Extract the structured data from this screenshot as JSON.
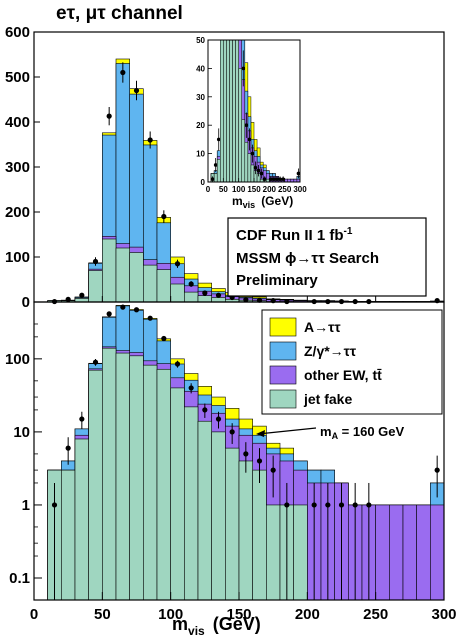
{
  "title": "eτ, μτ channel",
  "colors": {
    "a_tautau": "#ffff00",
    "z_tautau": "#5fb5f0",
    "other_ew": "#9a6cf0",
    "jet_fake": "#9fd6c0",
    "outline": "#000000"
  },
  "chart_data": [
    {
      "type": "area",
      "panel": "top-linear",
      "title": "",
      "xlabel": "",
      "ylabel": "",
      "xlim": [
        0,
        300
      ],
      "ylim": [
        0,
        600
      ],
      "bin_width": 10,
      "bin_edges": [
        10,
        20,
        30,
        40,
        50,
        60,
        70,
        80,
        90,
        100,
        110,
        120,
        130,
        140,
        150,
        160,
        170,
        180,
        190,
        200,
        210,
        220,
        230,
        240,
        250,
        260,
        270,
        280,
        290,
        300
      ],
      "series": [
        {
          "name": "jet fake",
          "values": [
            3,
            3,
            8,
            70,
            140,
            120,
            110,
            82,
            72,
            40,
            22,
            14,
            10,
            6,
            4,
            3,
            1,
            1,
            1,
            0,
            0,
            0,
            0,
            0,
            0,
            0,
            0,
            0,
            0
          ]
        },
        {
          "name": "other EW, tt̄",
          "values": [
            0,
            0,
            1,
            3,
            6,
            10,
            12,
            12,
            14,
            15,
            14,
            10,
            8,
            6,
            5,
            4,
            4,
            3,
            2,
            2,
            2,
            2,
            1,
            1,
            1,
            1,
            1,
            1,
            1
          ]
        },
        {
          "name": "Z/γ*→ττ",
          "values": [
            0,
            1,
            2,
            13,
            225,
            400,
            340,
            255,
            90,
            30,
            15,
            8,
            5,
            3,
            2,
            2,
            1,
            1,
            1,
            1,
            1,
            0,
            0,
            0,
            0,
            0,
            0,
            0,
            1
          ]
        },
        {
          "name": "A→ττ",
          "values": [
            0,
            0,
            0,
            1,
            5,
            10,
            12,
            10,
            12,
            15,
            12,
            10,
            7,
            6,
            4,
            3,
            1,
            1,
            0,
            0,
            0,
            0,
            0,
            0,
            0,
            0,
            0,
            0,
            0
          ]
        }
      ],
      "data_points": [
        {
          "x": 15,
          "y": 1
        },
        {
          "x": 25,
          "y": 6
        },
        {
          "x": 35,
          "y": 15
        },
        {
          "x": 45,
          "y": 90
        },
        {
          "x": 55,
          "y": 413
        },
        {
          "x": 65,
          "y": 510
        },
        {
          "x": 75,
          "y": 470
        },
        {
          "x": 85,
          "y": 360
        },
        {
          "x": 95,
          "y": 190
        },
        {
          "x": 105,
          "y": 85
        },
        {
          "x": 115,
          "y": 40
        },
        {
          "x": 125,
          "y": 20
        },
        {
          "x": 135,
          "y": 15
        },
        {
          "x": 145,
          "y": 10
        },
        {
          "x": 155,
          "y": 5
        },
        {
          "x": 165,
          "y": 4
        },
        {
          "x": 175,
          "y": 3
        },
        {
          "x": 185,
          "y": 1
        },
        {
          "x": 195,
          "y": 0
        },
        {
          "x": 205,
          "y": 1
        },
        {
          "x": 215,
          "y": 1
        },
        {
          "x": 225,
          "y": 1
        },
        {
          "x": 235,
          "y": 1
        },
        {
          "x": 245,
          "y": 1
        },
        {
          "x": 255,
          "y": 0
        },
        {
          "x": 265,
          "y": 0
        },
        {
          "x": 275,
          "y": 0
        },
        {
          "x": 285,
          "y": 0
        },
        {
          "x": 295,
          "y": 3
        }
      ],
      "xticks": [
        0,
        50,
        100,
        150,
        200,
        250,
        300
      ],
      "yticks": [
        0,
        100,
        200,
        300,
        400,
        500,
        600
      ]
    },
    {
      "type": "area",
      "panel": "inset-zoom",
      "xlabel": "m_vis  (GeV)",
      "xlim": [
        0,
        300
      ],
      "ylim": [
        0,
        50
      ],
      "xticks": [
        0,
        50,
        100,
        150,
        200,
        250,
        300
      ],
      "yticks": [
        0,
        10,
        20,
        30,
        40,
        50
      ]
    },
    {
      "type": "area",
      "panel": "bottom-log",
      "xlabel": "m_vis  (GeV)",
      "xlim": [
        0,
        300
      ],
      "ylim": [
        0.05,
        600
      ],
      "log_y": true,
      "xticks": [
        0,
        50,
        100,
        150,
        200,
        250,
        300
      ],
      "yticks": [
        0.1,
        1,
        10,
        100
      ],
      "ytick_labels": [
        "0.1",
        "1",
        "10",
        "100"
      ]
    }
  ],
  "top_labels": {
    "yticks": [
      "0",
      "100",
      "200",
      "300",
      "400",
      "500",
      "600"
    ],
    "xticks": [
      "0",
      "50",
      "100",
      "150",
      "200",
      "250",
      "300"
    ]
  },
  "inset_labels": {
    "xlabel_main": "m",
    "xlabel_sub": "vis",
    "xlabel_unit": "(GeV)",
    "yticks": [
      "0",
      "10",
      "20",
      "30",
      "40",
      "50"
    ],
    "xticks": [
      "0",
      "50",
      "100",
      "150",
      "200",
      "250",
      "300"
    ]
  },
  "infobox": {
    "line1": "CDF Run II  1 fb",
    "line1_sup": "-1",
    "line2": "MSSM ϕ→ττ Search",
    "line3": "Preliminary"
  },
  "legend": [
    {
      "label": "A→ττ",
      "color": "#ffff00"
    },
    {
      "label": "Z/γ*→ττ",
      "color": "#5fb5f0"
    },
    {
      "label": "other EW, tt̄",
      "color": "#9a6cf0"
    },
    {
      "label": "jet fake",
      "color": "#9fd6c0"
    }
  ],
  "annotation": "m",
  "annotation_sub": "A",
  "annotation_rest": " = 160 GeV",
  "bottom_labels": {
    "xlabel_main": "m",
    "xlabel_sub": "vis",
    "xlabel_unit": "(GeV)",
    "yticks": [
      "0.1",
      "1",
      "10",
      "100"
    ],
    "xticks": [
      "0",
      "50",
      "100",
      "150",
      "200",
      "250",
      "300"
    ]
  }
}
